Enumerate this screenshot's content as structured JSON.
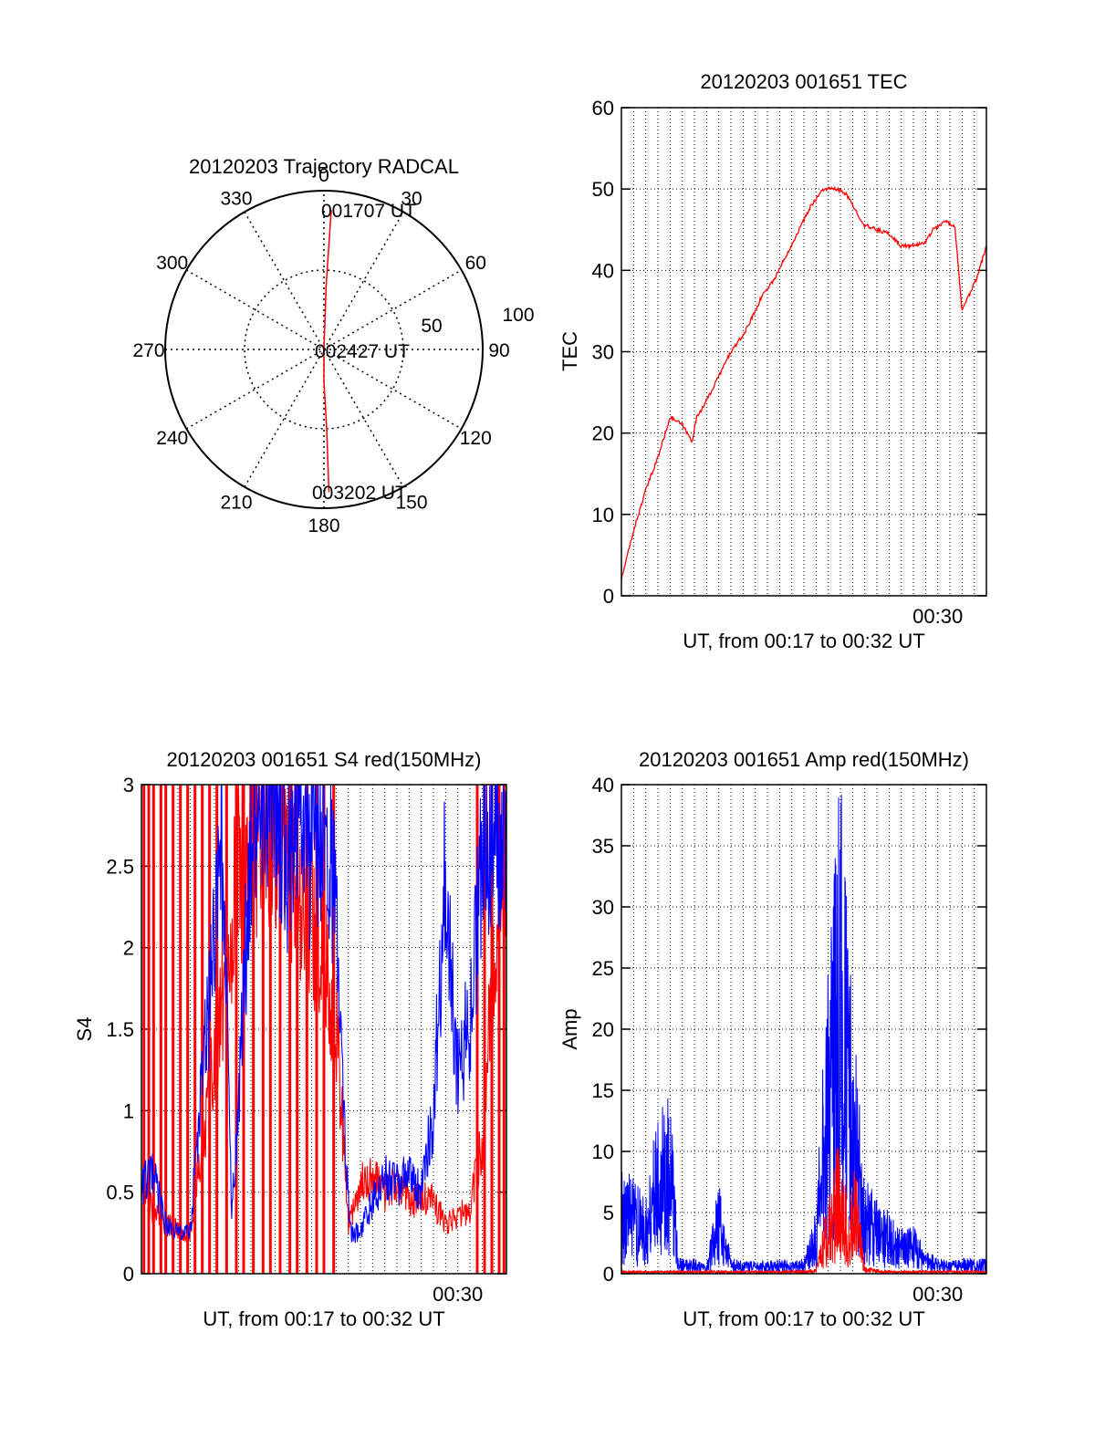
{
  "chart_data": [
    {
      "id": "polar",
      "type": "polar",
      "title": "20120203 Trajectory RADCAL",
      "angle_labels": [
        "0",
        "30",
        "60",
        "90",
        "120",
        "150",
        "180",
        "210",
        "240",
        "270",
        "300",
        "330"
      ],
      "radius_labels": [
        "50",
        "100"
      ],
      "rmax": 100,
      "trajectory": [
        {
          "az": 2,
          "el": 90,
          "label": "001707 UT"
        },
        {
          "az": 90,
          "el": 0,
          "label": "002427 UT"
        },
        {
          "az": 178,
          "el": 90,
          "label": "003202 UT"
        }
      ],
      "trajectory_points": [
        [
          3,
          88
        ],
        [
          2,
          40
        ],
        [
          0,
          0
        ],
        [
          180,
          20
        ],
        [
          178,
          50
        ],
        [
          178,
          90
        ]
      ],
      "colors": {
        "trajectory": "#ff0000"
      }
    },
    {
      "id": "tec",
      "type": "line",
      "title": "20120203 001651 TEC",
      "xlabel": "UT, from 00:17 to 00:32 UT",
      "ylabel": "TEC",
      "xlim": [
        17.0,
        32.0
      ],
      "ylim": [
        0,
        60
      ],
      "yticks": [
        "0",
        "10",
        "20",
        "30",
        "40",
        "50",
        "60"
      ],
      "xtick_label": "00:30",
      "xtick_label_at": 30.0,
      "grid": true,
      "series": [
        {
          "color": "#ff0000",
          "x": [
            17.0,
            17.5,
            18.0,
            18.5,
            19.0,
            19.5,
            19.9,
            20.1,
            20.5,
            21.0,
            21.5,
            22.0,
            22.5,
            22.8,
            23.3,
            23.8,
            24.3,
            24.8,
            25.3,
            25.8,
            26.2,
            26.5,
            27.0,
            27.5,
            28.0,
            28.5,
            29.0,
            29.5,
            29.8,
            30.3,
            30.7,
            31.0,
            31.3,
            31.6,
            32.0
          ],
          "y": [
            2,
            8,
            13,
            17,
            22,
            21,
            19,
            22,
            24,
            27,
            30,
            32,
            35,
            37,
            39,
            42,
            45,
            48,
            50,
            50,
            49.5,
            48,
            45.5,
            45,
            44.5,
            43,
            43,
            43.5,
            45,
            46,
            45.5,
            35,
            37,
            39,
            43
          ]
        }
      ]
    },
    {
      "id": "s4",
      "type": "line",
      "title": "20120203 001651 S4 red(150MHz)",
      "xlabel": "UT, from 00:17 to 00:32 UT",
      "ylabel": "S4",
      "xlim": [
        17.0,
        32.0
      ],
      "ylim": [
        0,
        3
      ],
      "yticks": [
        "0",
        "0.5",
        "1",
        "1.5",
        "2",
        "2.5",
        "3"
      ],
      "xtick_label": "00:30",
      "xtick_label_at": 30.0,
      "grid": true,
      "series": [
        {
          "color": "#ff0000",
          "x": [
            17.0,
            18.0,
            19.0,
            20.0,
            21.0,
            22.0,
            23.0,
            24.0,
            25.0,
            25.5,
            26.0,
            26.5,
            27.0,
            27.5,
            28.0,
            28.5,
            29.0,
            29.5,
            30.0,
            30.5,
            31.0,
            31.5,
            32.0
          ],
          "y": [
            0.5,
            0.3,
            0.25,
            1.3,
            2.5,
            2.8,
            2.6,
            2.2,
            1.6,
            0.3,
            0.55,
            0.6,
            0.5,
            0.55,
            0.45,
            0.45,
            0.45,
            0.3,
            0.35,
            0.4,
            0.8,
            2.0,
            2.6
          ],
          "spike_x": [
            17.1,
            17.3,
            17.5,
            17.8,
            18.0,
            18.3,
            18.6,
            18.9,
            19.2,
            19.5,
            19.8,
            20.1,
            20.5,
            20.9,
            21.2,
            21.6,
            22.0,
            22.3,
            22.7,
            23.1,
            23.4,
            23.8,
            24.2,
            24.5,
            24.9,
            30.8,
            31.1,
            31.4,
            31.7,
            31.9
          ]
        },
        {
          "color": "#0000ff",
          "x": [
            17.0,
            17.5,
            18.0,
            18.5,
            19.0,
            19.5,
            20.0,
            20.3,
            20.7,
            21.0,
            21.5,
            22.0,
            22.5,
            23.0,
            23.5,
            24.0,
            24.5,
            25.0,
            25.3,
            25.6,
            26.0,
            26.5,
            27.0,
            27.5,
            28.0,
            28.5,
            29.0,
            29.5,
            30.0,
            30.5,
            31.0,
            31.5,
            32.0
          ],
          "y": [
            0.55,
            0.6,
            0.3,
            0.25,
            0.25,
            1.2,
            2.0,
            2.8,
            0.4,
            1.0,
            2.8,
            3.0,
            3.0,
            2.6,
            3.0,
            2.5,
            3.0,
            2.2,
            1.0,
            0.25,
            0.25,
            0.45,
            0.6,
            0.55,
            0.6,
            0.5,
            1.0,
            2.5,
            1.2,
            1.6,
            2.5,
            2.8,
            2.7
          ]
        }
      ]
    },
    {
      "id": "amp",
      "type": "line",
      "title": "20120203 001651 Amp red(150MHz)",
      "xlabel": "UT, from 00:17 to 00:32 UT",
      "ylabel": "Amp",
      "xlim": [
        17.0,
        32.0
      ],
      "ylim": [
        0,
        40
      ],
      "yticks": [
        "0",
        "5",
        "10",
        "15",
        "20",
        "25",
        "30",
        "35",
        "40"
      ],
      "xtick_label": "00:30",
      "xtick_label_at": 30.0,
      "grid": true,
      "series": [
        {
          "color": "#0000ff",
          "x": [
            17.0,
            17.5,
            18.0,
            18.5,
            19.0,
            19.4,
            19.6,
            20.0,
            20.5,
            21.0,
            21.5,
            22.0,
            22.5,
            23.0,
            23.5,
            24.0,
            24.5,
            25.0,
            25.3,
            25.6,
            26.0,
            26.5,
            27.0,
            27.5,
            28.0,
            28.5,
            29.0,
            29.5,
            30.0,
            30.5,
            31.0,
            31.5,
            32.0
          ],
          "y": [
            7,
            6,
            5,
            12,
            11,
            1,
            1,
            1,
            0.5,
            6,
            1,
            0.8,
            0.8,
            0.8,
            1,
            0.8,
            1,
            4,
            14,
            22,
            32,
            17,
            6,
            5,
            4,
            3,
            3,
            1.5,
            1,
            0.8,
            1,
            1,
            1
          ]
        },
        {
          "color": "#ff0000",
          "x": [
            17.0,
            18.0,
            19.0,
            20.0,
            21.0,
            22.0,
            23.0,
            24.0,
            25.0,
            25.5,
            26.0,
            26.3,
            26.6,
            27.0,
            27.5,
            28.0,
            29.0,
            30.0,
            31.0,
            32.0
          ],
          "y": [
            0.2,
            0.2,
            0.2,
            0.2,
            0.2,
            0.2,
            0.2,
            0.2,
            0.3,
            5,
            9,
            4,
            7,
            0.5,
            0.3,
            0.2,
            0.2,
            0.2,
            0.2,
            0.2
          ]
        }
      ]
    }
  ]
}
